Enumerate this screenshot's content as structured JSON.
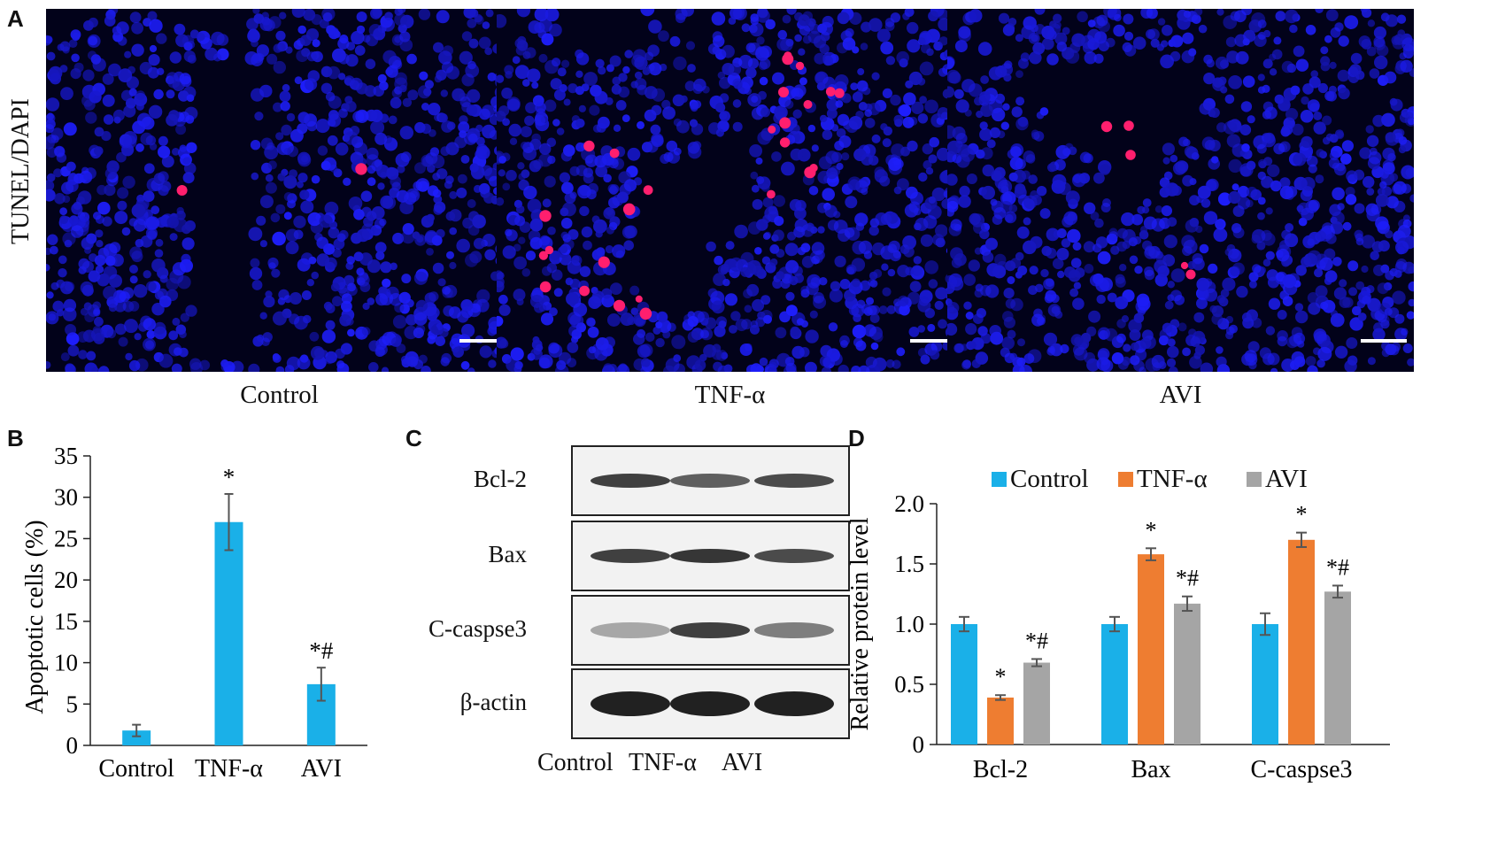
{
  "panel_a": {
    "letter": "A",
    "row_label": "TUNEL/DAPI",
    "images": [
      {
        "caption": "Control",
        "apoptotic_spots": 2
      },
      {
        "caption": "TNF-α",
        "apoptotic_spots": 26
      },
      {
        "caption": "AVI",
        "apoptotic_spots": 5
      }
    ]
  },
  "panel_c": {
    "letter": "C",
    "rows": [
      "Bcl-2",
      "Bax",
      "C-caspse3",
      "β-actin"
    ],
    "lanes": [
      "Control",
      "TNF-α",
      "AVI"
    ]
  },
  "colors": {
    "control": "#1ab0e8",
    "tnf": "#ee7d31",
    "avi": "#a5a5a5",
    "nuclei": "#1a1ad6",
    "tunel": "#ff1f6e"
  },
  "chart_data": [
    {
      "panel": "B",
      "type": "bar",
      "categories": [
        "Control",
        "TNF-α",
        "AVI"
      ],
      "values": [
        1.8,
        27.0,
        7.4
      ],
      "errors": [
        0.7,
        3.4,
        2.0
      ],
      "annotations": [
        "",
        "*",
        "*#"
      ],
      "ylabel": "Apoptotic cells (%)",
      "ylim": [
        0,
        35
      ],
      "yticks": [
        0,
        5,
        10,
        15,
        20,
        25,
        30,
        35
      ]
    },
    {
      "panel": "D",
      "type": "bar",
      "categories": [
        "Bcl-2",
        "Bax",
        "C-caspse3"
      ],
      "series": [
        {
          "name": "Control",
          "values": [
            1.0,
            1.0,
            1.0
          ],
          "errors": [
            0.06,
            0.06,
            0.09
          ],
          "annotations": [
            "",
            "",
            ""
          ]
        },
        {
          "name": "TNF-α",
          "values": [
            0.39,
            1.58,
            1.7
          ],
          "errors": [
            0.02,
            0.05,
            0.06
          ],
          "annotations": [
            "*",
            "*",
            "*"
          ]
        },
        {
          "name": "AVI",
          "values": [
            0.68,
            1.17,
            1.27
          ],
          "errors": [
            0.03,
            0.06,
            0.05
          ],
          "annotations": [
            "*#",
            "*#",
            "*#"
          ]
        }
      ],
      "ylabel": "Relative protein level",
      "ylim": [
        0,
        2.0
      ],
      "yticks": [
        "0",
        "0.5",
        "1.0",
        "1.5",
        "2.0"
      ],
      "legend": "top"
    }
  ]
}
